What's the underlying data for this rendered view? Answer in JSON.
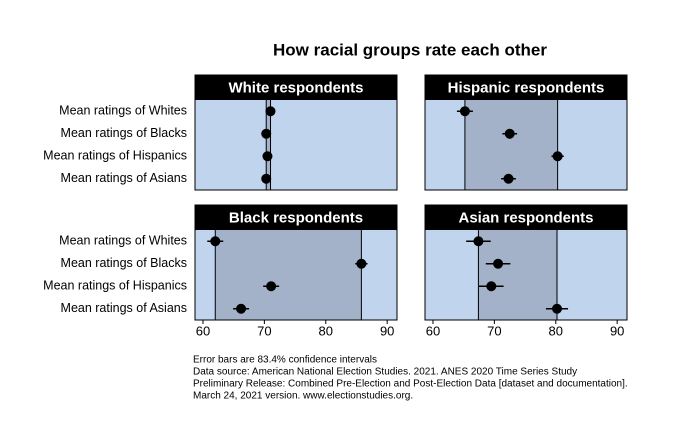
{
  "title": "How racial groups rate each other",
  "notes": [
    "Error bars are 83.4% confidence intervals",
    "Data source: American National Election Studies. 2021. ANES 2020 Time Series Study",
    "Preliminary Release: Combined Pre-Election and Post-Election Data [dataset and documentation].",
    "March 24, 2021 version. www.electionstudies.org."
  ],
  "chart_data": [
    {
      "type": "dot",
      "title": "White respondents",
      "categories": [
        "Mean ratings of Whites",
        "Mean ratings of Blacks",
        "Mean ratings of Hispanics",
        "Mean ratings of Asians"
      ],
      "values": [
        71.0,
        70.3,
        70.5,
        70.3
      ],
      "errors": [
        0.5,
        0.5,
        0.6,
        0.6
      ],
      "xlim": [
        58.7,
        91.6
      ],
      "color": "#000000",
      "background": "#c0d4ee",
      "band_color": "#a3b2c8"
    },
    {
      "type": "dot",
      "title": "Hispanic respondents",
      "values": [
        65.2,
        72.5,
        80.3,
        72.3
      ],
      "errors": [
        1.3,
        1.2,
        1.0,
        1.2
      ],
      "xlim": [
        58.7,
        91.6
      ],
      "color": "#000000",
      "background": "#c0d4ee",
      "band_color": "#a3b2c8"
    },
    {
      "type": "dot",
      "title": "Black respondents",
      "categories": [
        "Mean ratings of Whites",
        "Mean ratings of Blacks",
        "Mean ratings of Hispanics",
        "Mean ratings of Asians"
      ],
      "values": [
        62.0,
        85.8,
        71.1,
        66.2
      ],
      "errors": [
        1.3,
        1.0,
        1.3,
        1.3
      ],
      "xlim": [
        58.7,
        91.6
      ],
      "xticks": [
        60,
        70,
        80,
        90
      ],
      "color": "#000000",
      "background": "#c0d4ee",
      "band_color": "#a3b2c8"
    },
    {
      "type": "dot",
      "title": "Asian respondents",
      "values": [
        67.4,
        70.6,
        69.5,
        80.2
      ],
      "errors": [
        2.0,
        2.0,
        2.0,
        1.8
      ],
      "xlim": [
        58.7,
        91.6
      ],
      "xticks": [
        60,
        70,
        80,
        90
      ],
      "color": "#000000",
      "background": "#c0d4ee",
      "band_color": "#a3b2c8"
    }
  ]
}
